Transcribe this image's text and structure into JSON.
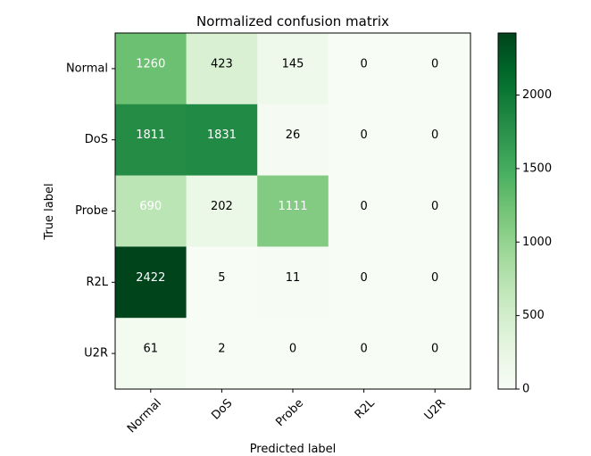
{
  "chart_data": {
    "type": "heatmap",
    "title": "Normalized confusion matrix",
    "xlabel": "Predicted label",
    "ylabel": "True label",
    "x_categories": [
      "Normal",
      "DoS",
      "Probe",
      "R2L",
      "U2R"
    ],
    "y_categories": [
      "Normal",
      "DoS",
      "Probe",
      "R2L",
      "U2R"
    ],
    "values": [
      [
        1260,
        423,
        145,
        0,
        0
      ],
      [
        1811,
        1831,
        26,
        0,
        0
      ],
      [
        690,
        202,
        1111,
        0,
        0
      ],
      [
        2422,
        5,
        11,
        0,
        0
      ],
      [
        61,
        2,
        0,
        0,
        0
      ]
    ],
    "colormap": "Greens",
    "colorbar": {
      "range": [
        0,
        2422
      ],
      "ticks": [
        0,
        500,
        1000,
        1500,
        2000
      ]
    },
    "colors": {
      "low": "#f7fcf5",
      "high": "#00441b"
    }
  }
}
